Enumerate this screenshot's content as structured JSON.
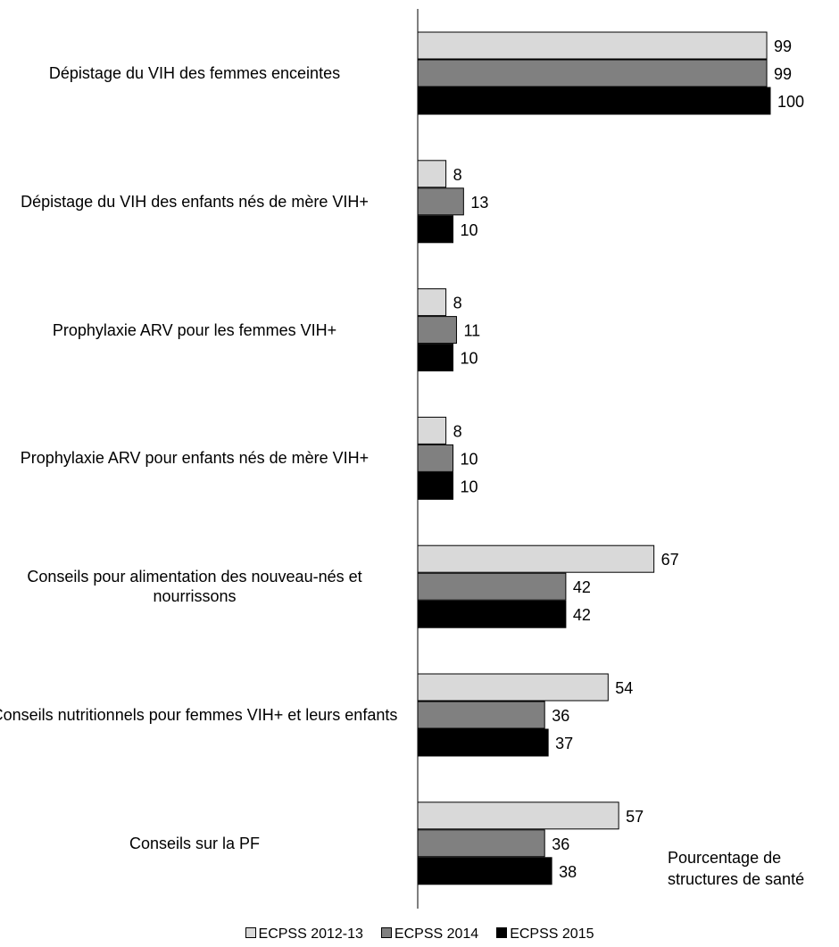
{
  "chart_data": {
    "type": "bar",
    "orientation": "horizontal",
    "categories": [
      "Dépistage du VIH des femmes enceintes",
      "Dépistage du VIH des enfants nés de mère VIH+",
      "Prophylaxie ARV pour les femmes VIH+",
      "Prophylaxie ARV pour enfants nés de mère VIH+",
      "Conseils pour alimentation des nouveau-nés et nourrissons",
      "Conseils nutritionnels pour femmes VIH+ et leurs enfants",
      "Conseils sur la PF"
    ],
    "series": [
      {
        "name": "ECPSS 2012-13",
        "color": "#d9d9d9",
        "values": [
          99,
          8,
          8,
          8,
          67,
          54,
          57
        ]
      },
      {
        "name": "ECPSS 2014",
        "color": "#808080",
        "values": [
          99,
          13,
          11,
          10,
          42,
          36,
          36
        ]
      },
      {
        "name": "ECPSS 2015",
        "color": "#000000",
        "values": [
          100,
          10,
          10,
          10,
          42,
          37,
          38
        ]
      }
    ],
    "xlabel": "Pourcentage de structures de santé",
    "xlim": [
      0,
      100
    ],
    "grid": false,
    "legend_position": "bottom",
    "data_labels": true
  }
}
